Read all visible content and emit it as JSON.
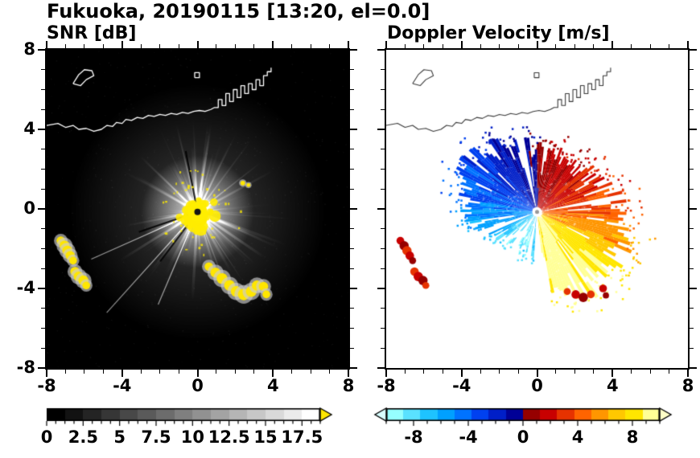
{
  "title": "Fukuoka, 20190115 [13:20, el=0.0]",
  "panels": {
    "snr": {
      "label": "SNR [dB]"
    },
    "doppler": {
      "label": "Doppler Velocity [m/s]"
    }
  },
  "axes": {
    "xlim": [
      -8,
      8
    ],
    "ylim": [
      -8,
      8
    ],
    "xticks": [
      -8,
      -4,
      0,
      4,
      8
    ],
    "yticks": [
      -8,
      -4,
      0,
      4,
      8
    ],
    "xtick_labels": [
      "-8",
      "-4",
      "0",
      "4",
      "8"
    ],
    "ytick_labels": [
      "8",
      "4",
      "0",
      "-4",
      "-8"
    ],
    "minor_step": 1
  },
  "colorbars": {
    "snr": {
      "min": 0,
      "max": 18.75,
      "step": 1.25,
      "minor_step": 0.625,
      "ticks": [
        0,
        2.5,
        5,
        7.5,
        10,
        12.5,
        15,
        17.5
      ],
      "tick_labels": [
        "0",
        "2.5",
        "5",
        "7.5",
        "10",
        "12.5",
        "15",
        "17.5"
      ],
      "over_arrow_color": "#ffe600"
    },
    "doppler": {
      "min": -10,
      "max": 10,
      "step": 1.25,
      "minor_step": 1,
      "ticks": [
        -8,
        -4,
        0,
        4,
        8
      ],
      "tick_labels": [
        "-8",
        "-4",
        "0",
        "4",
        "8"
      ],
      "under_arrow_color": "#d9ffff",
      "over_arrow_color": "#ffffc8",
      "colors": [
        "#96ffff",
        "#5ae1ff",
        "#1ec3ff",
        "#00a0ff",
        "#0073ff",
        "#0041f0",
        "#001fc8",
        "#000096",
        "#960000",
        "#c80000",
        "#e63200",
        "#ff6400",
        "#ff9600",
        "#ffc800",
        "#ffe600",
        "#ffff96"
      ]
    }
  },
  "coastline": [
    [
      [
        -8,
        4.2
      ],
      [
        -7.4,
        4.3
      ],
      [
        -7.0,
        4.1
      ],
      [
        -6.6,
        4.2
      ],
      [
        -6.3,
        4.0
      ],
      [
        -5.9,
        4.05
      ],
      [
        -5.5,
        3.9
      ],
      [
        -5.1,
        4.0
      ],
      [
        -4.8,
        4.2
      ],
      [
        -4.5,
        4.15
      ],
      [
        -4.3,
        4.35
      ],
      [
        -4.0,
        4.3
      ],
      [
        -3.8,
        4.5
      ],
      [
        -3.5,
        4.45
      ],
      [
        -3.2,
        4.6
      ],
      [
        -2.9,
        4.55
      ],
      [
        -2.6,
        4.7
      ],
      [
        -2.3,
        4.65
      ],
      [
        -2.0,
        4.75
      ],
      [
        -1.7,
        4.7
      ],
      [
        -1.4,
        4.8
      ],
      [
        -1.1,
        4.75
      ],
      [
        -0.8,
        4.85
      ],
      [
        -0.5,
        4.8
      ],
      [
        -0.2,
        4.9
      ],
      [
        0.1,
        4.95
      ],
      [
        0.4,
        4.9
      ],
      [
        0.7,
        5.0
      ],
      [
        0.9,
        5.1
      ],
      [
        1.1,
        5.1
      ],
      [
        1.1,
        5.5
      ],
      [
        1.3,
        5.5
      ],
      [
        1.3,
        5.2
      ],
      [
        1.5,
        5.2
      ],
      [
        1.5,
        5.8
      ],
      [
        1.7,
        5.8
      ],
      [
        1.7,
        5.4
      ],
      [
        1.9,
        5.4
      ],
      [
        1.9,
        6.0
      ],
      [
        2.1,
        6.0
      ],
      [
        2.1,
        5.6
      ],
      [
        2.3,
        5.6
      ],
      [
        2.3,
        6.2
      ],
      [
        2.5,
        6.2
      ],
      [
        2.5,
        5.8
      ],
      [
        2.7,
        5.8
      ],
      [
        2.7,
        6.3
      ],
      [
        2.9,
        6.3
      ],
      [
        2.9,
        6.0
      ],
      [
        3.1,
        6.0
      ],
      [
        3.1,
        6.5
      ],
      [
        3.3,
        6.5
      ],
      [
        3.3,
        6.2
      ],
      [
        3.5,
        6.2
      ],
      [
        3.5,
        6.7
      ],
      [
        3.7,
        6.7
      ],
      [
        3.7,
        6.9
      ],
      [
        3.9,
        6.9
      ],
      [
        3.9,
        7.1
      ]
    ],
    [
      [
        -6.6,
        6.3
      ],
      [
        -6.3,
        6.75
      ],
      [
        -6.0,
        7.0
      ],
      [
        -5.6,
        6.95
      ],
      [
        -5.5,
        6.7
      ],
      [
        -5.9,
        6.5
      ],
      [
        -6.2,
        6.2
      ],
      [
        -6.6,
        6.3
      ]
    ],
    [
      [
        -0.15,
        6.6
      ],
      [
        0.1,
        6.6
      ],
      [
        0.1,
        6.85
      ],
      [
        -0.15,
        6.85
      ],
      [
        -0.15,
        6.6
      ]
    ]
  ],
  "chart_data": [
    {
      "type": "heatmap",
      "title": "SNR [dB]",
      "xlim": [
        -8,
        8
      ],
      "ylim": [
        -8,
        8
      ],
      "xticks": [
        -8,
        -4,
        0,
        4,
        8
      ],
      "yticks": [
        -8,
        -4,
        0,
        4,
        8
      ],
      "colorbar": {
        "range": [
          0,
          18.75
        ],
        "ticks": [
          0,
          2.5,
          5,
          7.5,
          10,
          12.5,
          15,
          17.5
        ],
        "over_arrow": "yellow"
      },
      "radar_center": [
        0,
        -0.15
      ],
      "ray_count": 150,
      "long_rays_deg_len": [
        [
          228,
          7.0
        ],
        [
          247,
          5.2
        ],
        [
          204,
          6.0
        ]
      ],
      "shadow_rays_deg": [
        233,
        199,
        101
      ],
      "clutter_yellow": [
        [
          -7.25,
          -1.6,
          0.22
        ],
        [
          -7.05,
          -1.85,
          0.26
        ],
        [
          -6.9,
          -2.1,
          0.26
        ],
        [
          -6.75,
          -2.35,
          0.24
        ],
        [
          -6.6,
          -2.6,
          0.2
        ],
        [
          -6.5,
          -3.15,
          0.24
        ],
        [
          -6.3,
          -3.4,
          0.26
        ],
        [
          -6.05,
          -3.6,
          0.26
        ],
        [
          -5.9,
          -3.85,
          0.2
        ],
        [
          0.6,
          -2.9,
          0.22
        ],
        [
          0.95,
          -3.2,
          0.26
        ],
        [
          1.3,
          -3.5,
          0.28
        ],
        [
          1.7,
          -3.85,
          0.28
        ],
        [
          2.05,
          -4.15,
          0.28
        ],
        [
          2.45,
          -4.3,
          0.3
        ],
        [
          2.85,
          -4.15,
          0.28
        ],
        [
          3.15,
          -3.85,
          0.26
        ],
        [
          3.5,
          -3.9,
          0.24
        ],
        [
          3.65,
          -4.3,
          0.2
        ],
        [
          2.4,
          1.3,
          0.12
        ],
        [
          2.7,
          1.2,
          0.1
        ]
      ]
    },
    {
      "type": "heatmap",
      "title": "Doppler Velocity [m/s]",
      "xlim": [
        -8,
        8
      ],
      "ylim": [
        -8,
        8
      ],
      "xticks": [
        -8,
        -4,
        0,
        4,
        8
      ],
      "yticks": [
        -8,
        -4,
        0,
        4,
        8
      ],
      "colorbar": {
        "range": [
          -10,
          10
        ],
        "ticks": [
          -8,
          -4,
          0,
          4,
          8
        ],
        "under_arrow": "pale-cyan",
        "over_arrow": "pale-yellow"
      },
      "radar_center": [
        0,
        -0.15
      ],
      "velocity_anchors_deg_ms": [
        [
          0,
          4
        ],
        [
          20,
          3
        ],
        [
          45,
          2
        ],
        [
          70,
          1.2
        ],
        [
          85,
          0.5
        ],
        [
          95,
          -0.5
        ],
        [
          110,
          -1.3
        ],
        [
          130,
          -2.2
        ],
        [
          150,
          -3.2
        ],
        [
          170,
          -4.2
        ],
        [
          190,
          -5.5
        ],
        [
          210,
          -7
        ],
        [
          230,
          -8.5
        ],
        [
          250,
          -8.5
        ],
        [
          266,
          -7.5
        ],
        [
          270,
          2
        ],
        [
          274,
          8.5
        ],
        [
          285,
          9
        ],
        [
          300,
          9.6
        ],
        [
          320,
          8.5
        ],
        [
          340,
          6
        ],
        [
          360,
          4
        ]
      ],
      "radius_anchors_deg_km": [
        [
          0,
          4.3
        ],
        [
          30,
          3.8
        ],
        [
          60,
          3.1
        ],
        [
          90,
          3.3
        ],
        [
          120,
          4.1
        ],
        [
          150,
          4.4
        ],
        [
          180,
          3.5
        ],
        [
          210,
          2.7
        ],
        [
          240,
          2.3
        ],
        [
          266,
          2.6
        ],
        [
          274,
          3.4
        ],
        [
          300,
          4.9
        ],
        [
          330,
          5.1
        ],
        [
          360,
          4.3
        ]
      ],
      "gap_sectors_deg": [
        [
          8,
          11
        ],
        [
          99,
          104
        ],
        [
          197,
          203
        ],
        [
          231,
          238
        ],
        [
          256,
          261
        ],
        [
          266,
          275
        ]
      ],
      "clutter_red": [
        [
          -7.25,
          -1.6,
          0.2
        ],
        [
          -7.05,
          -1.85,
          0.24
        ],
        [
          -6.9,
          -2.1,
          0.24
        ],
        [
          -6.75,
          -2.35,
          0.22
        ],
        [
          -6.6,
          -2.6,
          0.18
        ],
        [
          -6.5,
          -3.15,
          0.22
        ],
        [
          -6.3,
          -3.4,
          0.24
        ],
        [
          -6.05,
          -3.6,
          0.24
        ],
        [
          -5.9,
          -3.85,
          0.18
        ],
        [
          2.05,
          -4.3,
          0.22
        ],
        [
          2.45,
          -4.45,
          0.24
        ],
        [
          2.85,
          -4.3,
          0.2
        ],
        [
          3.5,
          -4.0,
          0.2
        ],
        [
          3.65,
          -4.35,
          0.16
        ],
        [
          1.6,
          -4.15,
          0.18
        ]
      ]
    }
  ]
}
